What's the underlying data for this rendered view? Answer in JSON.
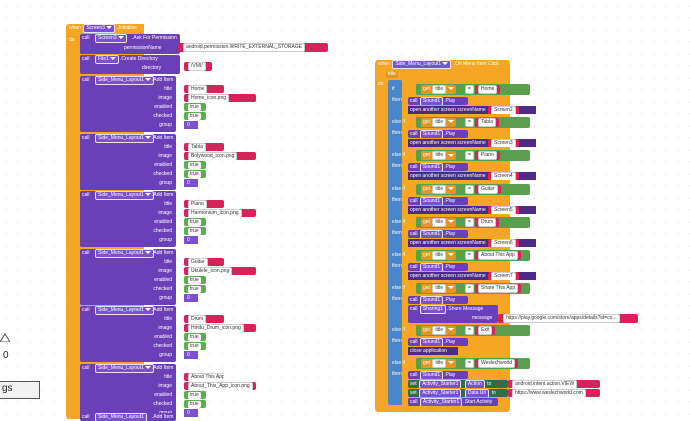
{
  "left_event": {
    "when": "when",
    "component": "Screen3",
    "event": ".Initialize",
    "do": "do",
    "ask": {
      "call": "call",
      "component": "Screen3",
      "method": ".Ask For Permission",
      "param": "permissionName",
      "value": "android.permission.WRITE_EXTERNAL_STORAGE"
    },
    "mkdir": {
      "call": "call",
      "component": "File1",
      "method": ".Create Directory",
      "param": "directory",
      "value": "/VMI/"
    },
    "add_items": [
      {
        "call": "call",
        "component": "Side_Menu_Layout1",
        "method": ".Add Item",
        "title": "Home",
        "image": "Home_icon.png",
        "enabled": "true",
        "checked": "true",
        "group": "0"
      },
      {
        "call": "call",
        "component": "Side_Menu_Layout1",
        "method": ".Add Item",
        "title": "Tabla",
        "image": "Bolywood_icon.png",
        "enabled": "true",
        "checked": "true",
        "group": "0"
      },
      {
        "call": "call",
        "component": "Side_Menu_Layout1",
        "method": ".Add Item",
        "title": "Piano",
        "image": "Harmonium_icon.png",
        "enabled": "true",
        "checked": "true",
        "group": "0"
      },
      {
        "call": "call",
        "component": "Side_Menu_Layout1",
        "method": ".Add Item",
        "title": "Guitar",
        "image": "Ukulele_icon.png",
        "enabled": "true",
        "checked": "true",
        "group": "0"
      },
      {
        "call": "call",
        "component": "Side_Menu_Layout1",
        "method": ".Add Item",
        "title": "Drum",
        "image": "Hindu_Drum_icon.png",
        "enabled": "true",
        "checked": "true",
        "group": "0"
      },
      {
        "call": "call",
        "component": "Side_Menu_Layout1",
        "method": ".Add Item",
        "title": "About This App",
        "image": "About_This_App_icon.png",
        "enabled": "true",
        "checked": "true",
        "group": "0"
      }
    ],
    "last_call": {
      "call": "call",
      "component": "Side_Menu_Layout1",
      "method": ".Add Item"
    },
    "labels": {
      "title": "title",
      "image": "image",
      "enabled": "enabled",
      "checked": "checked",
      "group": "group"
    }
  },
  "right_event": {
    "when": "when",
    "component": "Side_Menu_Layout1",
    "event": ".On Menu Item Click",
    "param": "title",
    "do": "do",
    "if": "if",
    "elseif": "else if",
    "then": "then",
    "get": "get",
    "var": "title",
    "eq": "=",
    "play": {
      "call": "call",
      "component": "Sound1",
      "method": ".Play"
    },
    "open": {
      "text": "open another screen",
      "param": "screenName"
    },
    "branches": [
      {
        "match": "Home",
        "screen": "Screen2"
      },
      {
        "match": "Tabla",
        "screen": "Screen3"
      },
      {
        "match": "Piano",
        "screen": "Screen4"
      },
      {
        "match": "Guitar",
        "screen": "Screen5"
      },
      {
        "match": "Drum",
        "screen": "Screen6"
      },
      {
        "match": "About This App",
        "screen": "Screen7"
      }
    ],
    "share": {
      "match": "Share This App",
      "call": "call",
      "component": "Sharing1",
      "method": ".Share Message",
      "param": "message",
      "value": "https://play.google.com/store/apps/details?id=co..."
    },
    "exit": {
      "match": "Exit",
      "text": "close application"
    },
    "web": {
      "match": "Weslechworld",
      "action": {
        "call": "set",
        "component": "Activity_Starter1",
        "prop": "Action",
        "to": "to",
        "value": "android.intent.action.VIEW"
      },
      "datauri": {
        "call": "set",
        "component": "Activity_Starter1",
        "prop": "Data Uri",
        "to": "to",
        "value": "https://www.weslechworld.com"
      },
      "start": {
        "call": "call",
        "component": "Activity_Starter1",
        "method": ".Start Activity"
      }
    }
  },
  "left_widget": {
    "number": "0",
    "button": "gs"
  }
}
